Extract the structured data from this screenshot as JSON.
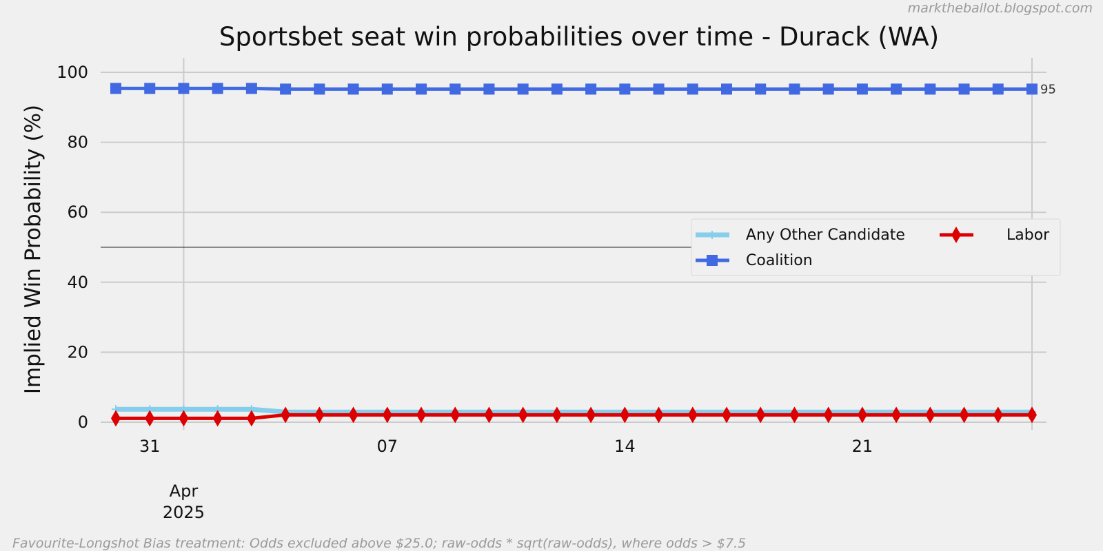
{
  "chart_data": {
    "type": "line",
    "title": "Sportsbet seat win probabilities over time - Durack (WA)",
    "ylabel": "Implied Win Probability (%)",
    "xlabel": "",
    "ylim": [
      0,
      100
    ],
    "yticks": [
      0,
      20,
      40,
      60,
      80,
      100
    ],
    "reference_line": 50,
    "x_dates": [
      "2025-03-30",
      "2025-03-31",
      "2025-04-01",
      "2025-04-02",
      "2025-04-03",
      "2025-04-04",
      "2025-04-05",
      "2025-04-06",
      "2025-04-07",
      "2025-04-08",
      "2025-04-09",
      "2025-04-10",
      "2025-04-11",
      "2025-04-12",
      "2025-04-13",
      "2025-04-14",
      "2025-04-15",
      "2025-04-16",
      "2025-04-17",
      "2025-04-18",
      "2025-04-19",
      "2025-04-20",
      "2025-04-21",
      "2025-04-22",
      "2025-04-23",
      "2025-04-24",
      "2025-04-25",
      "2025-04-26"
    ],
    "xticks": [
      {
        "date": "2025-03-31",
        "label": "31"
      },
      {
        "date": "2025-04-07",
        "label": "07"
      },
      {
        "date": "2025-04-14",
        "label": "14"
      },
      {
        "date": "2025-04-21",
        "label": "21"
      }
    ],
    "month_label": {
      "date": "2025-04-01",
      "month": "Apr",
      "year": "2025"
    },
    "series": [
      {
        "name": "Any Other Candidate",
        "color": "#87ceeb",
        "marker": "plus",
        "values": [
          3.7,
          3.7,
          3.7,
          3.7,
          3.7,
          2.9,
          2.9,
          2.9,
          2.9,
          2.9,
          2.9,
          2.9,
          2.9,
          2.9,
          2.9,
          2.9,
          2.9,
          2.9,
          2.9,
          2.9,
          2.9,
          2.9,
          2.9,
          2.9,
          2.9,
          2.9,
          2.9,
          2.9
        ]
      },
      {
        "name": "Coalition",
        "color": "#4169e1",
        "marker": "square",
        "values": [
          95.4,
          95.4,
          95.4,
          95.4,
          95.4,
          95.2,
          95.2,
          95.2,
          95.2,
          95.2,
          95.2,
          95.2,
          95.2,
          95.2,
          95.2,
          95.2,
          95.2,
          95.2,
          95.2,
          95.2,
          95.2,
          95.2,
          95.2,
          95.2,
          95.2,
          95.2,
          95.2,
          95.2
        ]
      },
      {
        "name": "Labor",
        "color": "#dd0000",
        "marker": "diamond",
        "values": [
          1.1,
          1.1,
          1.1,
          1.1,
          1.1,
          2.1,
          2.1,
          2.1,
          2.1,
          2.1,
          2.1,
          2.1,
          2.1,
          2.1,
          2.1,
          2.1,
          2.1,
          2.1,
          2.1,
          2.1,
          2.1,
          2.1,
          2.1,
          2.1,
          2.1,
          2.1,
          2.1,
          2.1
        ]
      }
    ],
    "end_label": "95",
    "legend_position": "center-right",
    "grid": true
  },
  "watermark": "marktheballot.blogspot.com",
  "footnote": "Favourite-Longshot Bias treatment: Odds excluded above $25.0; raw-odds * sqrt(raw-odds), where odds > $7.5"
}
